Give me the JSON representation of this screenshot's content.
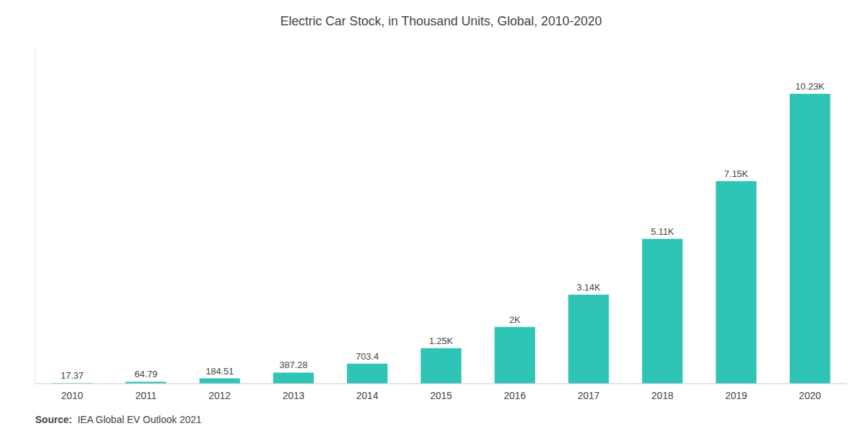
{
  "chart_data": {
    "type": "bar",
    "title": "Electric Car Stock, in Thousand Units, Global, 2010-2020",
    "categories": [
      "2010",
      "2011",
      "2012",
      "2013",
      "2014",
      "2015",
      "2016",
      "2017",
      "2018",
      "2019",
      "2020"
    ],
    "values": [
      17.37,
      64.79,
      184.51,
      387.28,
      703.4,
      1250,
      2000,
      3140,
      5110,
      7150,
      10230
    ],
    "value_labels": [
      "17.37",
      "64.79",
      "184.51",
      "387.28",
      "703.4",
      "1.25K",
      "2K",
      "3.14K",
      "5.11K",
      "7.15K",
      "10.23K"
    ],
    "color": "#2EC4B6",
    "ylim": [
      0,
      11800
    ],
    "grid": false,
    "data_labels": true,
    "tick_labels": "x",
    "annotations": [
      {
        "text": "Source:"
      },
      {
        "text": "  IEA Global EV Outlook 2021"
      }
    ]
  }
}
